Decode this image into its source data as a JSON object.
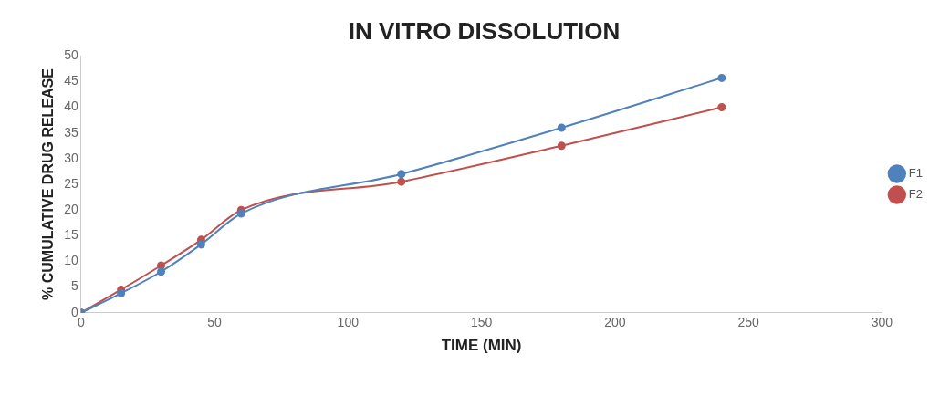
{
  "chart_data": {
    "type": "line",
    "title": "IN VITRO DISSOLUTION",
    "xlabel": "TIME (MIN)",
    "ylabel": "% CUMULATIVE DRUG RELEASE",
    "x": [
      0,
      15,
      30,
      45,
      60,
      120,
      180,
      240
    ],
    "series": [
      {
        "name": "F1",
        "color": "#4f81bd",
        "values": [
          0,
          3.8,
          8,
          13.3,
          19.3,
          27,
          36,
          45.7
        ]
      },
      {
        "name": "F2",
        "color": "#c0504d",
        "values": [
          0,
          4.5,
          9.2,
          14.2,
          20,
          25.5,
          32.5,
          40
        ]
      }
    ],
    "xlim": [
      0,
      300
    ],
    "xticks": [
      0,
      50,
      100,
      150,
      200,
      250,
      300
    ],
    "ylim": [
      0,
      50
    ],
    "yticks": [
      0,
      5,
      10,
      15,
      20,
      25,
      30,
      35,
      40,
      45,
      50
    ],
    "grid": false,
    "legend": "right",
    "marker": "circle",
    "line_style": "solid"
  }
}
